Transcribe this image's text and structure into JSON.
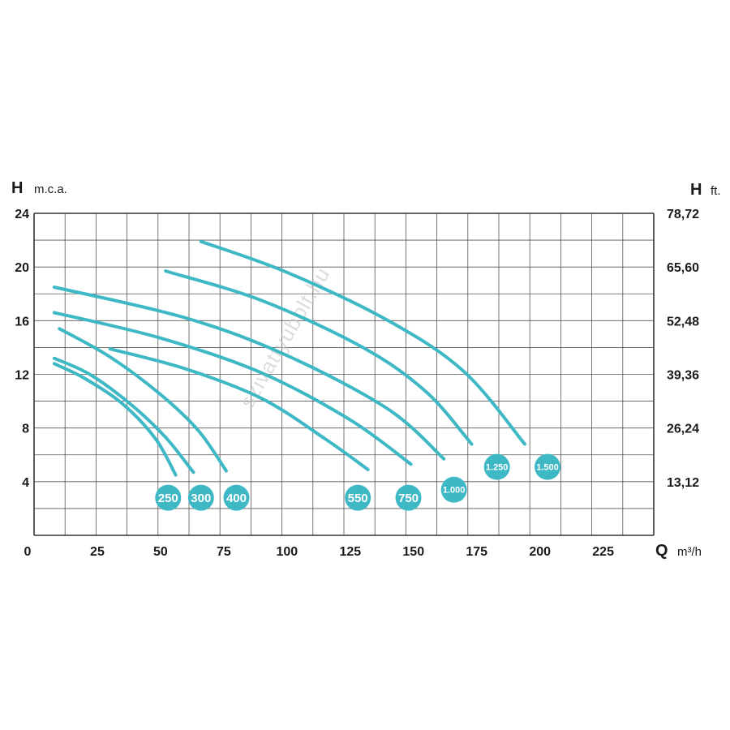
{
  "chart_data": {
    "type": "line",
    "y_axis_left": {
      "symbol": "H",
      "unit": "m.c.a.",
      "ticks": [
        "4",
        "8",
        "12",
        "16",
        "20",
        "24"
      ],
      "range": [
        0,
        24
      ]
    },
    "y_axis_right": {
      "symbol": "H",
      "unit": "ft.",
      "ticks": [
        "13,12",
        "26,24",
        "39,36",
        "52,48",
        "65,60",
        "78,72"
      ]
    },
    "x_axis": {
      "symbol": "Q",
      "unit": "m³/h",
      "ticks": [
        "0",
        "25",
        "50",
        "75",
        "100",
        "125",
        "150",
        "175",
        "200",
        "225"
      ],
      "range": [
        0,
        245
      ]
    },
    "grid": true,
    "line_color": "#3fb8c6",
    "badge_color": "#3fb8c6",
    "series": [
      {
        "name": "250",
        "points": [
          [
            8,
            12.8
          ],
          [
            20,
            11.7
          ],
          [
            35,
            9.8
          ],
          [
            48,
            7.2
          ],
          [
            56,
            4.5
          ]
        ],
        "badge": [
          53,
          2.8
        ]
      },
      {
        "name": "300",
        "points": [
          [
            8,
            13.2
          ],
          [
            22,
            12.0
          ],
          [
            38,
            9.8
          ],
          [
            52,
            7.3
          ],
          [
            63,
            4.7
          ]
        ],
        "badge": [
          66,
          2.8
        ]
      },
      {
        "name": "400",
        "points": [
          [
            10,
            15.4
          ],
          [
            30,
            13.3
          ],
          [
            50,
            10.5
          ],
          [
            65,
            7.8
          ],
          [
            76,
            4.8
          ]
        ],
        "badge": [
          80,
          2.8
        ]
      },
      {
        "name": "550",
        "points": [
          [
            30,
            13.9
          ],
          [
            60,
            12.4
          ],
          [
            90,
            10.2
          ],
          [
            115,
            7.2
          ],
          [
            132,
            4.9
          ]
        ],
        "badge": [
          128,
          2.8
        ]
      },
      {
        "name": "750",
        "points": [
          [
            8,
            16.6
          ],
          [
            50,
            14.7
          ],
          [
            90,
            12.1
          ],
          [
            125,
            8.6
          ],
          [
            149,
            5.3
          ]
        ],
        "badge": [
          148,
          2.8
        ]
      },
      {
        "name": "1.000",
        "points": [
          [
            8,
            18.5
          ],
          [
            60,
            16.2
          ],
          [
            100,
            13.4
          ],
          [
            140,
            9.4
          ],
          [
            162,
            5.7
          ]
        ],
        "badge": [
          166,
          3.4
        ]
      },
      {
        "name": "1.250",
        "points": [
          [
            52,
            19.7
          ],
          [
            90,
            17.5
          ],
          [
            130,
            14.0
          ],
          [
            155,
            10.7
          ],
          [
            173,
            6.8
          ]
        ],
        "badge": [
          183,
          5.1
        ]
      },
      {
        "name": "1.500",
        "points": [
          [
            66,
            21.9
          ],
          [
            100,
            19.6
          ],
          [
            140,
            16.0
          ],
          [
            170,
            12.2
          ],
          [
            194,
            6.8
          ]
        ],
        "badge": [
          203,
          5.1
        ]
      }
    ]
  },
  "watermark": "szivattyubolt.hu"
}
